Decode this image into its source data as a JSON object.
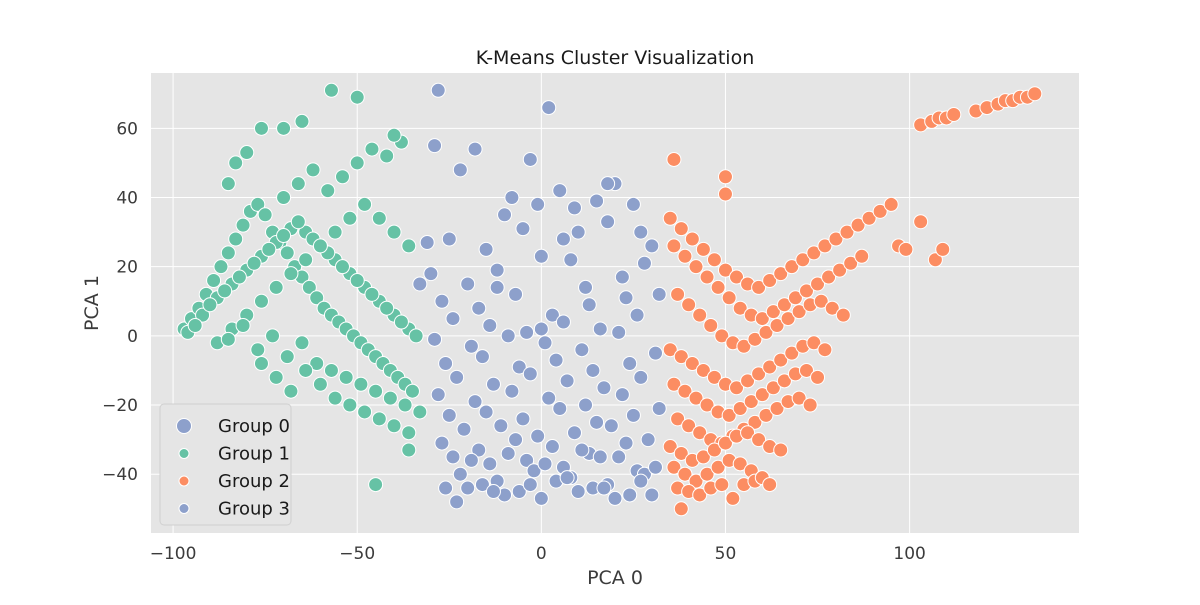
{
  "chart_data": {
    "type": "scatter",
    "title": "K-Means Cluster Visualization",
    "xlabel": "PCA 0",
    "ylabel": "PCA 1",
    "xlim": [
      -106,
      146
    ],
    "ylim": [
      -57,
      76
    ],
    "xticks": [
      -100,
      -50,
      0,
      50,
      100
    ],
    "xtick_labels": [
      "−100",
      "−50",
      "0",
      "50",
      "100"
    ],
    "yticks": [
      -40,
      -20,
      0,
      20,
      40,
      60
    ],
    "ytick_labels": [
      "−40",
      "−20",
      "0",
      "20",
      "40",
      "60"
    ],
    "grid": true,
    "legend_position": "bottom-left",
    "legend": [
      "Group 0",
      "Group 1",
      "Group 2",
      "Group 3"
    ],
    "colors": {
      "group_0": "#8da0cb",
      "group_1": "#66c2a5",
      "group_2": "#fc8d62",
      "group_3": "#8da0cb",
      "plot_background": "#e5e5e5",
      "grid": "#ffffff"
    },
    "series": [
      {
        "name": "Group 0",
        "x": [
          -28,
          -22,
          -18,
          -10,
          -8,
          -3,
          2,
          5,
          10,
          15,
          20,
          25,
          30,
          -25,
          -15,
          -5,
          8,
          18,
          28,
          -30,
          -20,
          -12,
          0,
          12,
          22,
          32,
          -27,
          -17,
          -7,
          3,
          13,
          23,
          -24,
          -14,
          -4,
          6,
          16,
          26,
          -29,
          -19,
          -9,
          1,
          11,
          21,
          31,
          -26,
          -16,
          -6,
          4,
          14,
          24,
          -23,
          -13,
          -3,
          7,
          17,
          27,
          -28,
          -18,
          -8,
          2,
          12,
          22,
          32,
          -25,
          -15,
          -5,
          5,
          15,
          25,
          -21,
          -11,
          -1,
          9,
          19,
          29,
          -27,
          -17,
          -7,
          3,
          13,
          23,
          -24,
          -14,
          -4,
          6,
          16,
          26,
          -22,
          -12,
          -2,
          8,
          18,
          28,
          -26,
          -16,
          -6,
          4,
          14,
          24,
          -20,
          -10,
          0,
          10,
          20,
          30,
          -23,
          -13,
          -3,
          7,
          17,
          27,
          -19,
          -9,
          1,
          11,
          21,
          31,
          -29,
          -1,
          6,
          18,
          27,
          -31,
          -33,
          -12,
          0,
          9
        ],
        "y": [
          71,
          48,
          54,
          35,
          40,
          51,
          66,
          42,
          30,
          39,
          44,
          38,
          26,
          28,
          25,
          31,
          22,
          33,
          21,
          18,
          15,
          19,
          23,
          14,
          17,
          12,
          10,
          8,
          12,
          6,
          9,
          11,
          5,
          3,
          1,
          4,
          2,
          6,
          -1,
          -3,
          0,
          -2,
          -4,
          1,
          -5,
          -8,
          -6,
          -9,
          -7,
          -10,
          -8,
          -12,
          -14,
          -11,
          -13,
          -15,
          -12,
          -17,
          -19,
          -16,
          -18,
          -20,
          -17,
          -21,
          -23,
          -22,
          -24,
          -21,
          -25,
          -23,
          -27,
          -26,
          -29,
          -28,
          -26,
          -30,
          -31,
          -33,
          -30,
          -32,
          -34,
          -31,
          -35,
          -37,
          -36,
          -38,
          -35,
          -39,
          -40,
          -42,
          -39,
          -41,
          -43,
          -40,
          -44,
          -43,
          -45,
          -42,
          -44,
          -46,
          -44,
          -46,
          -47,
          -45,
          -47,
          -46,
          -48,
          -45,
          -43,
          -41,
          -44,
          -42,
          -36,
          -34,
          -37,
          -33,
          -35,
          -38,
          55,
          38,
          28,
          44,
          30,
          27,
          15,
          14,
          2,
          37
        ],
        "marker_size": 13
      },
      {
        "name": "Group 1",
        "x": [
          -97,
          -95,
          -93,
          -91,
          -89,
          -87,
          -85,
          -83,
          -81,
          -79,
          -77,
          -75,
          -73,
          -71,
          -69,
          -67,
          -65,
          -63,
          -61,
          -59,
          -57,
          -55,
          -53,
          -51,
          -49,
          -47,
          -45,
          -43,
          -41,
          -39,
          -37,
          -35,
          -96,
          -92,
          -88,
          -84,
          -80,
          -76,
          -72,
          -68,
          -64,
          -60,
          -56,
          -52,
          -48,
          -44,
          -40,
          -36,
          -94,
          -90,
          -86,
          -82,
          -78,
          -74,
          -70,
          -66,
          -62,
          -58,
          -54,
          -50,
          -46,
          -42,
          -38,
          -34,
          -88,
          -84,
          -80,
          -76,
          -72,
          -68,
          -64,
          -60,
          -56,
          -52,
          -48,
          -44,
          -40,
          -36,
          -85,
          -81,
          -77,
          -73,
          -69,
          -65,
          -61,
          -57,
          -53,
          -49,
          -45,
          -41,
          -37,
          -33,
          -76,
          -72,
          -68,
          -64,
          -60,
          -56,
          -52,
          -48,
          -44,
          -40,
          -36,
          -70,
          -66,
          -62,
          -58,
          -54,
          -50,
          -46,
          -42,
          -38,
          -57,
          -50,
          -65,
          -76,
          -70,
          -40,
          -45,
          -36,
          -85,
          -83,
          -80
        ],
        "y": [
          2,
          5,
          8,
          12,
          16,
          20,
          24,
          28,
          32,
          36,
          38,
          35,
          30,
          27,
          24,
          20,
          17,
          14,
          11,
          8,
          6,
          4,
          2,
          0,
          -2,
          -4,
          -6,
          -8,
          -10,
          -12,
          -14,
          -16,
          1,
          6,
          11,
          15,
          19,
          23,
          27,
          31,
          30,
          26,
          22,
          18,
          14,
          10,
          6,
          2,
          3,
          9,
          13,
          17,
          21,
          25,
          29,
          33,
          28,
          24,
          20,
          16,
          12,
          8,
          4,
          0,
          -2,
          2,
          6,
          10,
          14,
          18,
          22,
          26,
          30,
          34,
          38,
          34,
          30,
          26,
          -1,
          3,
          -4,
          0,
          -6,
          -2,
          -8,
          -10,
          -12,
          -14,
          -16,
          -18,
          -20,
          -22,
          -8,
          -12,
          -16,
          -10,
          -14,
          -18,
          -20,
          -22,
          -24,
          -26,
          -28,
          40,
          44,
          48,
          42,
          46,
          50,
          54,
          52,
          56,
          71,
          69,
          62,
          60,
          60,
          58,
          -43,
          -33,
          44,
          50,
          53
        ],
        "marker_size": 13
      },
      {
        "name": "Group 2",
        "x": [
          35,
          38,
          41,
          44,
          47,
          50,
          53,
          56,
          59,
          62,
          65,
          68,
          71,
          74,
          77,
          80,
          83,
          86,
          89,
          92,
          95,
          36,
          39,
          42,
          45,
          48,
          51,
          54,
          57,
          60,
          63,
          66,
          69,
          72,
          75,
          78,
          81,
          84,
          87,
          37,
          40,
          43,
          46,
          49,
          52,
          55,
          58,
          61,
          64,
          67,
          70,
          73,
          76,
          79,
          82,
          35,
          38,
          41,
          44,
          47,
          50,
          53,
          56,
          59,
          62,
          65,
          68,
          71,
          74,
          77,
          36,
          39,
          42,
          45,
          48,
          51,
          54,
          57,
          60,
          63,
          66,
          69,
          72,
          75,
          37,
          40,
          43,
          46,
          49,
          52,
          55,
          58,
          61,
          64,
          67,
          70,
          73,
          35,
          38,
          41,
          44,
          47,
          50,
          53,
          56,
          59,
          62,
          65,
          36,
          39,
          42,
          45,
          48,
          51,
          54,
          57,
          60,
          37,
          40,
          43,
          46,
          49,
          52,
          55,
          58,
          103,
          106,
          108,
          110,
          112,
          118,
          121,
          124,
          126,
          128,
          130,
          132,
          134,
          107,
          109,
          97,
          99,
          103,
          36,
          50,
          38,
          60,
          62,
          50
        ],
        "y": [
          34,
          31,
          28,
          25,
          22,
          19,
          17,
          15,
          14,
          16,
          18,
          20,
          22,
          24,
          26,
          28,
          30,
          32,
          34,
          36,
          38,
          26,
          23,
          20,
          17,
          14,
          11,
          8,
          6,
          5,
          7,
          9,
          11,
          13,
          15,
          17,
          19,
          21,
          23,
          12,
          9,
          6,
          3,
          0,
          -2,
          -3,
          -1,
          1,
          3,
          5,
          7,
          9,
          10,
          8,
          6,
          -4,
          -6,
          -8,
          -10,
          -12,
          -14,
          -15,
          -13,
          -11,
          -9,
          -7,
          -5,
          -3,
          -2,
          -4,
          -14,
          -16,
          -18,
          -20,
          -22,
          -23,
          -21,
          -19,
          -17,
          -15,
          -13,
          -11,
          -10,
          -12,
          -24,
          -26,
          -28,
          -30,
          -31,
          -29,
          -27,
          -25,
          -23,
          -21,
          -19,
          -18,
          -20,
          -32,
          -34,
          -36,
          -35,
          -33,
          -31,
          -29,
          -28,
          -30,
          -32,
          -33,
          -38,
          -40,
          -42,
          -40,
          -38,
          -36,
          -37,
          -39,
          -41,
          -44,
          -45,
          -46,
          -44,
          -43,
          -47,
          -43,
          -42,
          61,
          62,
          63,
          63,
          64,
          65,
          66,
          67,
          68,
          68,
          69,
          69,
          70,
          22,
          25,
          26,
          25,
          33,
          51,
          46,
          -50,
          -41,
          -43,
          41
        ],
        "marker_size": 13
      },
      {
        "name": "Group 3",
        "x": [],
        "y": [],
        "marker_size": 8
      }
    ]
  }
}
